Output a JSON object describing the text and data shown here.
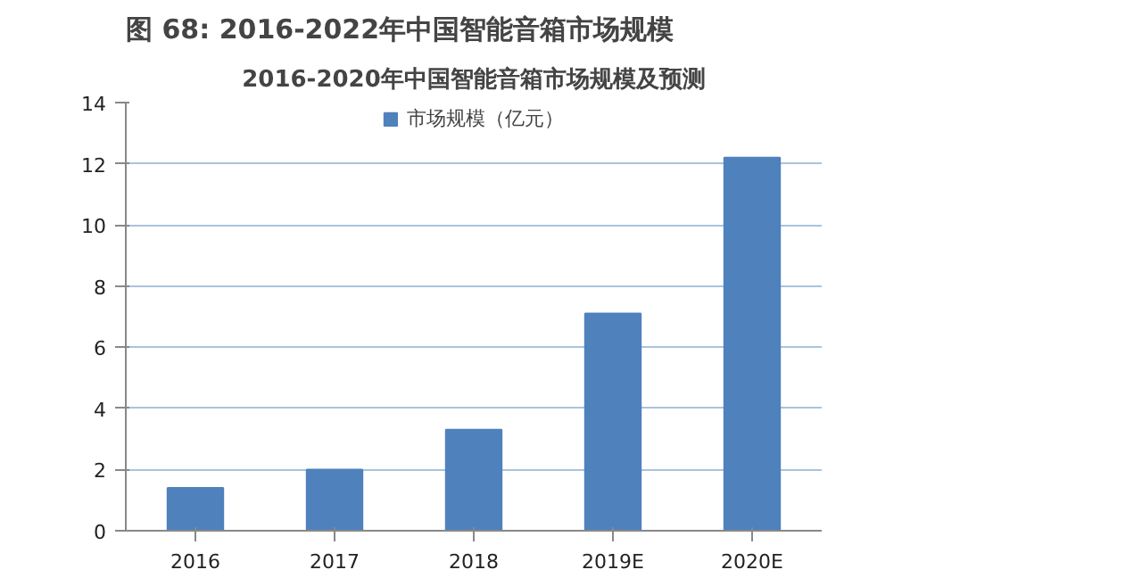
{
  "chart_data": {
    "type": "bar",
    "title": "图 68: 2016-2022年中国智能音箱市场规模",
    "subtitle": "2016-2020年中国智能音箱市场规模及预测",
    "categories": [
      "2016",
      "2017",
      "2018",
      "2019E",
      "2020E"
    ],
    "series": [
      {
        "name": "市场规模（亿元）",
        "color": "#4f81bd",
        "values": [
          1.4,
          2.0,
          3.3,
          7.1,
          12.2
        ]
      }
    ],
    "ylim": [
      0,
      14
    ],
    "yticks": [
      0,
      2,
      4,
      6,
      8,
      10,
      12,
      14
    ],
    "grid": "y",
    "legend": "top"
  }
}
